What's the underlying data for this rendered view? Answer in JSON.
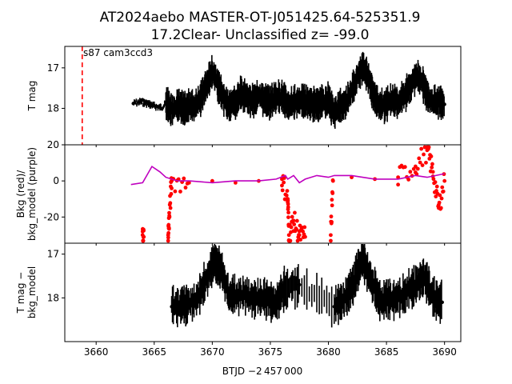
{
  "title_line1": "AT2024aebo  MASTER-OT-J051425.64-525351.9",
  "title_line2": "17.2Clear- Unclassified z= -99.0",
  "annotation": "s87 cam3ccd3",
  "xlabel": "BTJD −2 457 000",
  "colors": {
    "mag": "#000000",
    "bkg": "#ff0000",
    "bkg_model": "#bf00bf",
    "sector_line": "#ff0000"
  },
  "chart_data": [
    {
      "type": "scatter",
      "name": "top",
      "ylabel": "T mag",
      "xlim": [
        3657.3,
        3691.4
      ],
      "ylim": [
        18.9,
        16.47
      ],
      "y_inverted": true,
      "yticks": [
        17,
        18
      ],
      "sector_start_line_x": 3658.8,
      "points": [
        [
          3663.2,
          17.88
        ],
        [
          3663.8,
          17.84
        ],
        [
          3664.2,
          17.86
        ],
        [
          3664.6,
          17.9
        ],
        [
          3665.0,
          17.94
        ],
        [
          3665.5,
          17.98
        ],
        [
          3666.0,
          17.9
        ],
        [
          3666.5,
          18.05
        ],
        [
          3667.0,
          17.95
        ],
        [
          3667.5,
          18.0
        ],
        [
          3668.0,
          17.92
        ],
        [
          3668.5,
          17.97
        ],
        [
          3669.0,
          17.75
        ],
        [
          3669.5,
          17.4
        ],
        [
          3670.0,
          17.1
        ],
        [
          3670.5,
          17.4
        ],
        [
          3671.0,
          17.8
        ],
        [
          3671.5,
          17.95
        ],
        [
          3672.0,
          17.85
        ],
        [
          3672.5,
          17.65
        ],
        [
          3673.0,
          17.75
        ],
        [
          3673.5,
          17.8
        ],
        [
          3674.0,
          17.7
        ],
        [
          3674.5,
          17.78
        ],
        [
          3675.0,
          17.82
        ],
        [
          3675.5,
          17.75
        ],
        [
          3676.0,
          17.7
        ],
        [
          3676.5,
          17.9
        ],
        [
          3677.0,
          17.85
        ],
        [
          3677.5,
          17.82
        ],
        [
          3678.0,
          17.85
        ],
        [
          3678.5,
          17.88
        ],
        [
          3679.0,
          17.92
        ],
        [
          3679.5,
          17.85
        ],
        [
          3680.0,
          17.8
        ],
        [
          3680.5,
          18.1
        ],
        [
          3681.0,
          17.95
        ],
        [
          3681.5,
          17.85
        ],
        [
          3682.0,
          17.6
        ],
        [
          3682.5,
          17.2
        ],
        [
          3683.0,
          16.95
        ],
        [
          3683.5,
          17.3
        ],
        [
          3684.0,
          17.8
        ],
        [
          3684.5,
          17.95
        ],
        [
          3685.0,
          17.9
        ],
        [
          3685.5,
          17.8
        ],
        [
          3686.0,
          17.85
        ],
        [
          3686.5,
          17.7
        ],
        [
          3687.0,
          17.5
        ],
        [
          3687.5,
          17.2
        ],
        [
          3688.0,
          17.3
        ],
        [
          3688.5,
          17.7
        ],
        [
          3689.0,
          17.85
        ],
        [
          3689.5,
          17.8
        ],
        [
          3690.0,
          17.9
        ]
      ],
      "error_spread": 0.35
    },
    {
      "type": "scatter",
      "name": "middle",
      "ylabel": "Bkg (red)/\nbkg_model (purple)",
      "xlim": [
        3657.3,
        3691.4
      ],
      "ylim": [
        -34.5,
        20
      ],
      "yticks": [
        20,
        0,
        -20
      ],
      "series": [
        {
          "name": "Bkg",
          "color": "#ff0000",
          "points": [
            [
              3664.0,
              -30
            ],
            [
              3664.1,
              -31
            ],
            [
              3666.2,
              -30
            ],
            [
              3666.3,
              -20
            ],
            [
              3666.5,
              0
            ],
            [
              3668.0,
              -1
            ],
            [
              3670.0,
              0
            ],
            [
              3672.0,
              -1
            ],
            [
              3674.0,
              0
            ],
            [
              3676.0,
              1
            ],
            [
              3676.5,
              -10
            ],
            [
              3676.6,
              -30
            ],
            [
              3677.0,
              -22
            ],
            [
              3677.5,
              -30
            ],
            [
              3678.0,
              -31
            ],
            [
              3680.2,
              -30
            ],
            [
              3680.4,
              0
            ],
            [
              3682.0,
              2
            ],
            [
              3684.0,
              1
            ],
            [
              3686.0,
              2
            ],
            [
              3687.5,
              8
            ],
            [
              3688.5,
              17
            ],
            [
              3689.0,
              5
            ],
            [
              3689.5,
              -15
            ],
            [
              3690.0,
              0
            ]
          ]
        },
        {
          "name": "bkg_model",
          "color": "#bf00bf",
          "points": [
            [
              3663.0,
              -2
            ],
            [
              3664.0,
              -1
            ],
            [
              3664.8,
              8
            ],
            [
              3665.5,
              5
            ],
            [
              3666.0,
              2
            ],
            [
              3667.0,
              0
            ],
            [
              3668.0,
              0
            ],
            [
              3670.0,
              -1
            ],
            [
              3672.0,
              0
            ],
            [
              3674.0,
              0
            ],
            [
              3675.5,
              1
            ],
            [
              3676.3,
              3
            ],
            [
              3676.5,
              1
            ],
            [
              3677.0,
              3
            ],
            [
              3677.5,
              -1
            ],
            [
              3678.0,
              1
            ],
            [
              3679.0,
              3
            ],
            [
              3680.0,
              2
            ],
            [
              3680.5,
              3
            ],
            [
              3682.0,
              3
            ],
            [
              3684.0,
              1
            ],
            [
              3686.0,
              1
            ],
            [
              3687.5,
              3
            ],
            [
              3688.5,
              2
            ],
            [
              3690.0,
              4
            ]
          ]
        }
      ]
    },
    {
      "type": "scatter",
      "name": "bottom",
      "ylabel": "T mag −\nbkg_model",
      "xlim": [
        3657.3,
        3691.4
      ],
      "ylim": [
        19.0,
        16.75
      ],
      "y_inverted": true,
      "yticks": [
        17,
        18
      ],
      "xticks": [
        3660,
        3665,
        3670,
        3675,
        3680,
        3685,
        3690
      ],
      "points": [
        [
          3666.5,
          18.2
        ],
        [
          3667.5,
          18.15
        ],
        [
          3668.5,
          18.1
        ],
        [
          3669.5,
          17.6
        ],
        [
          3670.2,
          17.15
        ],
        [
          3670.8,
          17.4
        ],
        [
          3671.5,
          18.0
        ],
        [
          3672.5,
          17.9
        ],
        [
          3673.5,
          18.0
        ],
        [
          3674.5,
          18.0
        ],
        [
          3675.5,
          18.1
        ],
        [
          3676.2,
          17.8
        ],
        [
          3677.5,
          17.7
        ],
        [
          3680.5,
          18.2
        ],
        [
          3681.5,
          18.0
        ],
        [
          3682.3,
          17.6
        ],
        [
          3682.9,
          17.05
        ],
        [
          3683.5,
          17.5
        ],
        [
          3684.5,
          18.1
        ],
        [
          3685.5,
          18.0
        ],
        [
          3686.5,
          17.95
        ],
        [
          3687.5,
          17.7
        ],
        [
          3688.3,
          17.5
        ],
        [
          3689.0,
          18.0
        ],
        [
          3689.8,
          18.1
        ]
      ],
      "error_spread": 0.4
    }
  ]
}
